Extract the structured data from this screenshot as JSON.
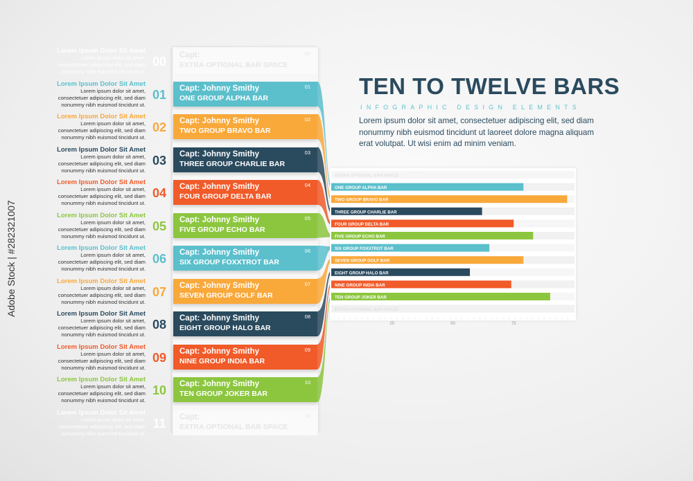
{
  "heading": {
    "title": "TEN TO TWELVE BARS",
    "subtitle": "INFOGRAPHIC DESIGN ELEMENTS",
    "body": "Lorem ipsum dolor sit amet, consectetuer adipiscing elit, sed diam nonummy nibh euismod tincidunt ut laoreet dolore magna aliquam erat volutpat. Ut wisi enim ad minim veniam."
  },
  "watermark": "Adobe Stock | #282321007",
  "colors": {
    "teal": "#5bbfcc",
    "orange": "#f9a83a",
    "navy": "#2a4a5e",
    "red": "#f15a29",
    "green": "#8cc63f",
    "ghost": "#e8e8e8"
  },
  "items": [
    {
      "num": "00",
      "title": "Lorem Ipsum Dolor Sit Amet",
      "desc": "Lorem ipsum dolor sit amet, consectetuer adipiscing elit, sed diam nonummy nibh euismod tincidunt ut.",
      "capt": "Capt:",
      "bar": "EXTRA OPTIONAL BAR SPACE",
      "color": "ghost"
    },
    {
      "num": "01",
      "title": "Lorem Ipsum Dolor Sit Amet",
      "desc": "Lorem ipsum dolor sit amet, consectetuer adipiscing elit, sed diam nonummy nibh euismod tincidunt ut.",
      "capt": "Capt: Johnny Smithy",
      "bar": "ONE GROUP ALPHA BAR",
      "color": "teal"
    },
    {
      "num": "02",
      "title": "Lorem Ipsum Dolor Sit Amet",
      "desc": "Lorem ipsum dolor sit amet, consectetuer adipiscing elit, sed diam nonummy nibh euismod tincidunt ut.",
      "capt": "Capt: Johnny Smithy",
      "bar": "TWO GROUP BRAVO BAR",
      "color": "orange"
    },
    {
      "num": "03",
      "title": "Lorem Ipsum Dolor Sit Amet",
      "desc": "Lorem ipsum dolor sit amet, consectetuer adipiscing elit, sed diam nonummy nibh euismod tincidunt ut.",
      "capt": "Capt: Johnny Smithy",
      "bar": "THREE GROUP CHARLIE BAR",
      "color": "navy"
    },
    {
      "num": "04",
      "title": "Lorem Ipsum Dolor Sit Amet",
      "desc": "Lorem ipsum dolor sit amet, consectetuer adipiscing elit, sed diam nonummy nibh euismod tincidunt ut.",
      "capt": "Capt: Johnny Smithy",
      "bar": "FOUR GROUP DELTA BAR",
      "color": "red"
    },
    {
      "num": "05",
      "title": "Lorem Ipsum Dolor Sit Amet",
      "desc": "Lorem ipsum dolor sit amet, consectetuer adipiscing elit, sed diam nonummy nibh euismod tincidunt ut.",
      "capt": "Capt: Johnny Smithy",
      "bar": "FIVE GROUP ECHO BAR",
      "color": "green"
    },
    {
      "num": "06",
      "title": "Lorem Ipsum Dolor Sit Amet",
      "desc": "Lorem ipsum dolor sit amet, consectetuer adipiscing elit, sed diam nonummy nibh euismod tincidunt ut.",
      "capt": "Capt: Johnny Smithy",
      "bar": "SIX GROUP FOXXTROT BAR",
      "color": "teal"
    },
    {
      "num": "07",
      "title": "Lorem Ipsum Dolor Sit Amet",
      "desc": "Lorem ipsum dolor sit amet, consectetuer adipiscing elit, sed diam nonummy nibh euismod tincidunt ut.",
      "capt": "Capt: Johnny Smithy",
      "bar": "SEVEN GROUP GOLF BAR",
      "color": "orange"
    },
    {
      "num": "08",
      "title": "Lorem Ipsum Dolor Sit Amet",
      "desc": "Lorem ipsum dolor sit amet, consectetuer adipiscing elit, sed diam nonummy nibh euismod tincidunt ut.",
      "capt": "Capt: Johnny Smithy",
      "bar": "EIGHT GROUP HALO BAR",
      "color": "navy"
    },
    {
      "num": "09",
      "title": "Lorem Ipsum Dolor Sit Amet",
      "desc": "Lorem ipsum dolor sit amet, consectetuer adipiscing elit, sed diam nonummy nibh euismod tincidunt ut.",
      "capt": "Capt: Johnny Smithy",
      "bar": "NINE GROUP INDIA BAR",
      "color": "red"
    },
    {
      "num": "10",
      "title": "Lorem Ipsum Dolor Sit Amet",
      "desc": "Lorem ipsum dolor sit amet, consectetuer adipiscing elit, sed diam nonummy nibh euismod tincidunt ut.",
      "capt": "Capt: Johnny Smithy",
      "bar": "TEN GROUP JOKER BAR",
      "color": "green"
    },
    {
      "num": "11",
      "title": "Lorem Ipsum Dolor Sit Amet",
      "desc": "Lorem ipsum dolor sit amet, consectetuer adipiscing elit, sed diam nonummy nibh euismod tincidunt ut.",
      "capt": "Capt:",
      "bar": "EXTRA OPTIONAL BAR SPACE",
      "color": "ghost"
    }
  ],
  "chart_data": {
    "type": "bar",
    "orientation": "horizontal",
    "categories": [
      "EXTRA OPTIONAL BAR SPACE",
      "ONE GROUP ALPHA BAR",
      "TWO GROUP BRAVO BAR",
      "THREE GROUP CHARLIE BAR",
      "FOUR GROUP DELTA BAR",
      "FIVE GROUP ECHO BAR",
      "SIX GROUP FOXXTROT BAR",
      "SEVEN GROUP GOLF BAR",
      "EIGHT GROUP HALO BAR",
      "NINE GROUP INDIA BAR",
      "TEN GROUP JOKER BAR",
      "EXTRA OPTIONAL BAR SPACE"
    ],
    "values": [
      0,
      79,
      97,
      62,
      75,
      83,
      65,
      79,
      57,
      74,
      90,
      0
    ],
    "colors": [
      "ghost",
      "teal",
      "orange",
      "navy",
      "red",
      "green",
      "teal",
      "orange",
      "navy",
      "red",
      "green",
      "ghost"
    ],
    "xticks": [
      25,
      50,
      75
    ],
    "xlim": [
      0,
      100
    ],
    "grid": false,
    "legend": "none"
  }
}
